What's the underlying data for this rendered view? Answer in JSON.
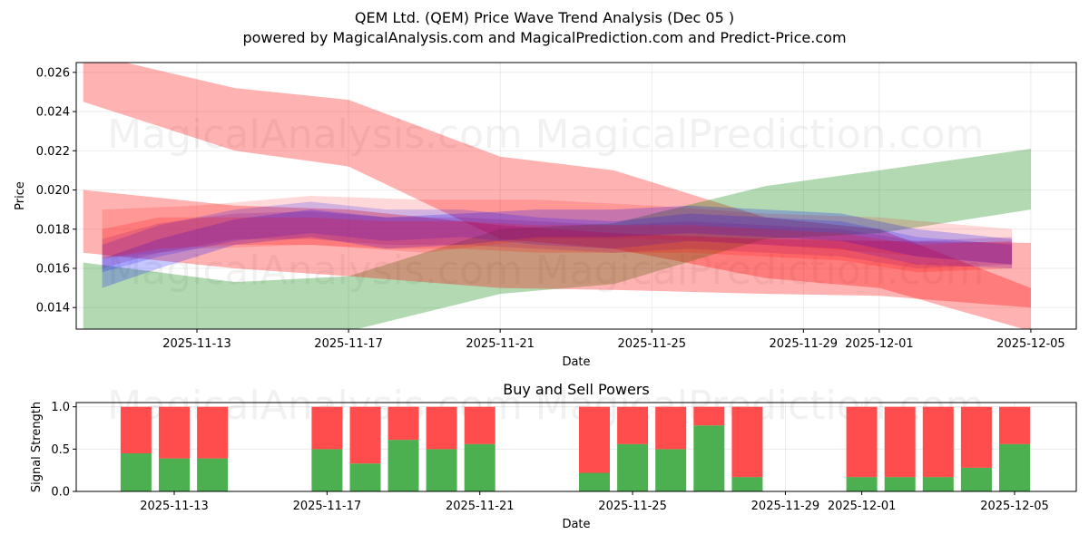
{
  "chart_data": [
    {
      "type": "area",
      "title_line1": "QEM Ltd. (QEM) Price Wave Trend Analysis (Dec 05 )",
      "title_line2": "powered by MagicalAnalysis.com and MagicalPrediction.com and Predict-Price.com",
      "xlabel": "Date",
      "ylabel": "Price",
      "ylim": [
        0.0129,
        0.0265
      ],
      "x_tick_labels": [
        "2025-11-13",
        "2025-11-17",
        "2025-11-21",
        "2025-11-25",
        "2025-11-29",
        "2025-12-01",
        "2025-12-05"
      ],
      "x_tick_days": [
        13,
        17,
        21,
        25,
        29,
        31,
        35
      ],
      "y_ticks": [
        0.014,
        0.016,
        0.018,
        0.02,
        0.022,
        0.024,
        0.026
      ],
      "y_tick_labels": [
        "0.014",
        "0.016",
        "0.018",
        "0.020",
        "0.022",
        "0.024",
        "0.026"
      ],
      "grid": true,
      "watermarks": [
        "MagicalAnalysis.com",
        "MagicalPrediction.com"
      ],
      "bands": [
        {
          "color": "#ff0000",
          "opacity": 0.3,
          "x": [
            10,
            14,
            17,
            21,
            24,
            28,
            31,
            35
          ],
          "low": [
            0.0245,
            0.022,
            0.0212,
            0.0175,
            0.017,
            0.0155,
            0.015,
            0.0128
          ],
          "high": [
            0.027,
            0.0252,
            0.0246,
            0.0217,
            0.021,
            0.0186,
            0.018,
            0.015
          ]
        },
        {
          "color": "#008000",
          "opacity": 0.3,
          "x": [
            10,
            14,
            17,
            21,
            24,
            28,
            31,
            35
          ],
          "low": [
            0.0125,
            0.0125,
            0.0128,
            0.0147,
            0.0152,
            0.0175,
            0.0178,
            0.019
          ],
          "high": [
            0.0163,
            0.0153,
            0.0156,
            0.018,
            0.0183,
            0.0202,
            0.021,
            0.0221
          ]
        },
        {
          "color": "#ff0000",
          "opacity": 0.3,
          "x": [
            10,
            14,
            17,
            21,
            24,
            28,
            31,
            35
          ],
          "low": [
            0.0168,
            0.016,
            0.0156,
            0.015,
            0.0149,
            0.0147,
            0.0146,
            0.014
          ],
          "high": [
            0.02,
            0.0192,
            0.019,
            0.0182,
            0.0178,
            0.0175,
            0.0174,
            0.0173
          ]
        },
        {
          "color": "#ff0000",
          "opacity": 0.15,
          "x": [
            10.5,
            13,
            16,
            19,
            22,
            25,
            28,
            31,
            34.5
          ],
          "low": [
            0.0165,
            0.017,
            0.0172,
            0.0168,
            0.0175,
            0.0175,
            0.0172,
            0.0168,
            0.0162
          ],
          "high": [
            0.019,
            0.0192,
            0.0197,
            0.0195,
            0.0195,
            0.0192,
            0.0188,
            0.0186,
            0.018
          ]
        },
        {
          "color": "#0000ff",
          "opacity": 0.22,
          "x": [
            10.5,
            12,
            14,
            16,
            18,
            20,
            22,
            24,
            26,
            28,
            30,
            32,
            34.5
          ],
          "low": [
            0.015,
            0.016,
            0.0172,
            0.0176,
            0.017,
            0.0172,
            0.0176,
            0.0176,
            0.0178,
            0.0176,
            0.0174,
            0.0166,
            0.0162
          ],
          "high": [
            0.0165,
            0.0175,
            0.0185,
            0.019,
            0.0186,
            0.0188,
            0.019,
            0.019,
            0.0192,
            0.019,
            0.0188,
            0.018,
            0.0175
          ]
        },
        {
          "color": "#0000ff",
          "opacity": 0.18,
          "x": [
            10.5,
            12,
            14,
            16,
            18,
            20,
            22,
            24,
            26,
            28,
            30,
            32,
            34.5
          ],
          "low": [
            0.0158,
            0.0166,
            0.0174,
            0.0178,
            0.0174,
            0.0176,
            0.0172,
            0.017,
            0.0174,
            0.0172,
            0.017,
            0.0162,
            0.016
          ],
          "high": [
            0.0172,
            0.0182,
            0.019,
            0.0194,
            0.019,
            0.019,
            0.0186,
            0.0184,
            0.0188,
            0.0186,
            0.0184,
            0.0176,
            0.0172
          ]
        },
        {
          "color": "#800080",
          "opacity": 0.18,
          "x": [
            10.5,
            12,
            14,
            16,
            18,
            20,
            22,
            24,
            26,
            28,
            30,
            32,
            34.5
          ],
          "low": [
            0.016,
            0.0168,
            0.0175,
            0.0175,
            0.0172,
            0.0172,
            0.017,
            0.0168,
            0.017,
            0.0168,
            0.0166,
            0.016,
            0.0162
          ],
          "high": [
            0.0175,
            0.0183,
            0.0188,
            0.0189,
            0.0186,
            0.0186,
            0.0184,
            0.0182,
            0.0184,
            0.0182,
            0.018,
            0.0174,
            0.0176
          ]
        },
        {
          "color": "#ff0000",
          "opacity": 0.18,
          "x": [
            10.5,
            12,
            14,
            16,
            18,
            20,
            22,
            24,
            26,
            28,
            30,
            32,
            34.5
          ],
          "low": [
            0.0165,
            0.017,
            0.0172,
            0.0172,
            0.017,
            0.017,
            0.0168,
            0.0168,
            0.0168,
            0.0166,
            0.0164,
            0.0158,
            0.016
          ],
          "high": [
            0.018,
            0.0186,
            0.0186,
            0.0186,
            0.0184,
            0.0184,
            0.0182,
            0.0182,
            0.0182,
            0.018,
            0.0178,
            0.0172,
            0.0174
          ]
        }
      ]
    },
    {
      "type": "bar",
      "title": "Buy and Sell Powers",
      "xlabel": "Date",
      "ylabel": "Signal Strength",
      "ylim": [
        0,
        1.05
      ],
      "y_ticks": [
        0.0,
        0.5,
        1.0
      ],
      "y_tick_labels": [
        "0.0",
        "0.5",
        "1.0"
      ],
      "x_tick_labels": [
        "2025-11-13",
        "2025-11-17",
        "2025-11-21",
        "2025-11-25",
        "2025-11-29",
        "2025-12-01",
        "2025-12-05"
      ],
      "x_tick_days": [
        13,
        17,
        21,
        25,
        29,
        31,
        35
      ],
      "colors": {
        "buy": "#4caf50",
        "sell": "#ff4c4c"
      },
      "bar_days": [
        12,
        13,
        14,
        17,
        18,
        19,
        20,
        21,
        24,
        25,
        26,
        27,
        28,
        31,
        32,
        33,
        34,
        35
      ],
      "buy": [
        0.45,
        0.39,
        0.39,
        0.5,
        0.33,
        0.61,
        0.5,
        0.56,
        0.22,
        0.56,
        0.5,
        0.78,
        0.17,
        0.17,
        0.17,
        0.17,
        0.28,
        0.56
      ],
      "sell": [
        0.55,
        0.61,
        0.61,
        0.5,
        0.67,
        0.39,
        0.5,
        0.44,
        0.78,
        0.44,
        0.5,
        0.22,
        0.83,
        0.83,
        0.83,
        0.83,
        0.72,
        0.44
      ],
      "watermarks": [
        "MagicalAnalysis.com",
        "MagicalPrediction.com"
      ]
    }
  ]
}
